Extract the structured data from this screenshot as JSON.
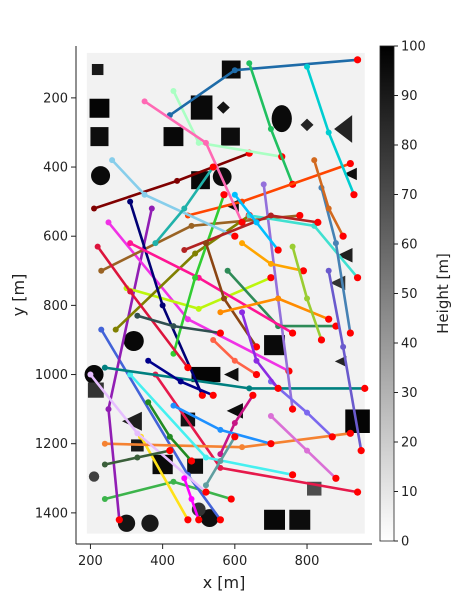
{
  "chart_data": {
    "type": "scatter",
    "title": "",
    "xlabel": "x [m]",
    "ylabel": "y [m]",
    "xlim": [
      160,
      980
    ],
    "ylim": [
      50,
      1490
    ],
    "y_inverted": true,
    "grid": false,
    "legend": "none",
    "xticks": [
      200,
      400,
      600,
      800
    ],
    "yticks": [
      200,
      400,
      600,
      800,
      1000,
      1200,
      1400
    ],
    "colorbar": {
      "label": "Height [m]",
      "range": [
        0,
        100
      ],
      "ticks": [
        0,
        10,
        20,
        30,
        40,
        50,
        60,
        70,
        80,
        90,
        100
      ],
      "colormap": "gray_r"
    },
    "map_extent": {
      "x": [
        190,
        960
      ],
      "y": [
        70,
        1460
      ]
    },
    "buildings": [
      {
        "x": 225,
        "y": 230,
        "w": 55,
        "h": 55,
        "shape": "square",
        "height": 98
      },
      {
        "x": 225,
        "y": 312,
        "w": 50,
        "h": 55,
        "shape": "square",
        "height": 95
      },
      {
        "x": 228,
        "y": 425,
        "w": 55,
        "h": 55,
        "shape": "circle",
        "height": 96
      },
      {
        "x": 220,
        "y": 118,
        "w": 32,
        "h": 32,
        "shape": "square",
        "height": 90
      },
      {
        "x": 430,
        "y": 312,
        "w": 55,
        "h": 55,
        "shape": "square",
        "height": 97
      },
      {
        "x": 508,
        "y": 228,
        "w": 60,
        "h": 70,
        "shape": "square",
        "height": 96
      },
      {
        "x": 568,
        "y": 228,
        "w": 36,
        "h": 36,
        "shape": "diamond",
        "height": 92
      },
      {
        "x": 565,
        "y": 428,
        "w": 52,
        "h": 58,
        "shape": "circle",
        "height": 95
      },
      {
        "x": 505,
        "y": 438,
        "w": 52,
        "h": 52,
        "shape": "square",
        "height": 96
      },
      {
        "x": 588,
        "y": 312,
        "w": 52,
        "h": 52,
        "shape": "square",
        "height": 95
      },
      {
        "x": 590,
        "y": 118,
        "w": 52,
        "h": 52,
        "shape": "square",
        "height": 96
      },
      {
        "x": 593,
        "y": 512,
        "w": 36,
        "h": 36,
        "shape": "triangle",
        "height": 94
      },
      {
        "x": 730,
        "y": 260,
        "w": 56,
        "h": 78,
        "shape": "ellipse",
        "height": 96
      },
      {
        "x": 800,
        "y": 278,
        "w": 36,
        "h": 36,
        "shape": "diamond",
        "height": 86
      },
      {
        "x": 900,
        "y": 290,
        "w": 50,
        "h": 80,
        "shape": "triangle",
        "height": 86
      },
      {
        "x": 920,
        "y": 420,
        "w": 36,
        "h": 36,
        "shape": "triangle",
        "height": 94
      },
      {
        "x": 905,
        "y": 655,
        "w": 42,
        "h": 42,
        "shape": "triangle",
        "height": 88
      },
      {
        "x": 885,
        "y": 735,
        "w": 42,
        "h": 42,
        "shape": "triangle",
        "height": 80
      },
      {
        "x": 893,
        "y": 962,
        "w": 32,
        "h": 32,
        "shape": "triangle",
        "height": 85
      },
      {
        "x": 320,
        "y": 903,
        "w": 58,
        "h": 58,
        "shape": "circle",
        "height": 97
      },
      {
        "x": 210,
        "y": 1000,
        "w": 55,
        "h": 55,
        "shape": "circle",
        "height": 97
      },
      {
        "x": 710,
        "y": 915,
        "w": 58,
        "h": 58,
        "shape": "square",
        "height": 96
      },
      {
        "x": 520,
        "y": 1000,
        "w": 80,
        "h": 44,
        "shape": "square",
        "height": 98
      },
      {
        "x": 590,
        "y": 1000,
        "w": 40,
        "h": 40,
        "shape": "triangle",
        "height": 94
      },
      {
        "x": 600,
        "y": 1105,
        "w": 45,
        "h": 45,
        "shape": "triangle",
        "height": 95
      },
      {
        "x": 315,
        "y": 1135,
        "w": 55,
        "h": 55,
        "shape": "triangle",
        "height": 88
      },
      {
        "x": 470,
        "y": 1130,
        "w": 40,
        "h": 40,
        "shape": "square",
        "height": 92
      },
      {
        "x": 940,
        "y": 1135,
        "w": 68,
        "h": 68,
        "shape": "square",
        "height": 98
      },
      {
        "x": 400,
        "y": 1260,
        "w": 56,
        "h": 56,
        "shape": "square",
        "height": 96
      },
      {
        "x": 490,
        "y": 1265,
        "w": 44,
        "h": 44,
        "shape": "square",
        "height": 95
      },
      {
        "x": 210,
        "y": 1295,
        "w": 30,
        "h": 30,
        "shape": "circle",
        "height": 75
      },
      {
        "x": 300,
        "y": 1430,
        "w": 50,
        "h": 50,
        "shape": "circle",
        "height": 92
      },
      {
        "x": 365,
        "y": 1430,
        "w": 50,
        "h": 50,
        "shape": "circle",
        "height": 90
      },
      {
        "x": 530,
        "y": 1415,
        "w": 52,
        "h": 52,
        "shape": "circle",
        "height": 94
      },
      {
        "x": 710,
        "y": 1420,
        "w": 58,
        "h": 58,
        "shape": "square",
        "height": 97
      },
      {
        "x": 780,
        "y": 1420,
        "w": 58,
        "h": 58,
        "shape": "square",
        "height": 95
      },
      {
        "x": 500,
        "y": 1390,
        "w": 40,
        "h": 40,
        "shape": "circle",
        "height": 80
      },
      {
        "x": 330,
        "y": 1205,
        "w": 35,
        "h": 35,
        "shape": "square",
        "height": 90
      },
      {
        "x": 215,
        "y": 1045,
        "w": 44,
        "h": 44,
        "shape": "square",
        "height": 80
      },
      {
        "x": 820,
        "y": 1330,
        "w": 40,
        "h": 40,
        "shape": "square",
        "height": 70
      }
    ],
    "trajectories": [
      {
        "color": "#e6194b",
        "points": [
          [
            380,
            1000
          ],
          [
            560,
            1270
          ],
          [
            940,
            1340
          ]
        ]
      },
      {
        "color": "#3cb44b",
        "points": [
          [
            240,
            1360
          ],
          [
            430,
            1310
          ],
          [
            590,
            1360
          ]
        ]
      },
      {
        "color": "#ffe119",
        "points": [
          [
            340,
            1180
          ],
          [
            470,
            1420
          ]
        ]
      },
      {
        "color": "#4363d8",
        "points": [
          [
            230,
            870
          ],
          [
            470,
            1290
          ],
          [
            560,
            1420
          ]
        ]
      },
      {
        "color": "#f58231",
        "points": [
          [
            240,
            1200
          ],
          [
            620,
            1210
          ],
          [
            920,
            1170
          ]
        ]
      },
      {
        "color": "#911eb4",
        "points": [
          [
            370,
            520
          ],
          [
            250,
            1100
          ],
          [
            280,
            1420
          ]
        ]
      },
      {
        "color": "#46f0f0",
        "points": [
          [
            310,
            1000
          ],
          [
            520,
            1240
          ],
          [
            760,
            1290
          ]
        ]
      },
      {
        "color": "#f032e6",
        "points": [
          [
            250,
            560
          ],
          [
            470,
            840
          ],
          [
            750,
            990
          ]
        ]
      },
      {
        "color": "#bcf60c",
        "points": [
          [
            300,
            750
          ],
          [
            500,
            810
          ],
          [
            700,
            720
          ]
        ]
      },
      {
        "color": "#008080",
        "points": [
          [
            240,
            980
          ],
          [
            640,
            1040
          ],
          [
            960,
            1040
          ]
        ]
      },
      {
        "color": "#e6beff",
        "points": [
          [
            200,
            1000
          ],
          [
            330,
            1170
          ],
          [
            520,
            1340
          ]
        ]
      },
      {
        "color": "#9a6324",
        "points": [
          [
            230,
            700
          ],
          [
            480,
            570
          ],
          [
            780,
            540
          ]
        ]
      },
      {
        "color": "#800000",
        "points": [
          [
            210,
            520
          ],
          [
            440,
            440
          ],
          [
            640,
            360
          ]
        ]
      },
      {
        "color": "#aaffc3",
        "points": [
          [
            430,
            180
          ],
          [
            500,
            330
          ],
          [
            730,
            370
          ]
        ]
      },
      {
        "color": "#808000",
        "points": [
          [
            270,
            870
          ],
          [
            490,
            650
          ],
          [
            640,
            540
          ]
        ]
      },
      {
        "color": "#000075",
        "points": [
          [
            310,
            500
          ],
          [
            400,
            800
          ],
          [
            510,
            1060
          ]
        ]
      },
      {
        "color": "#1e6ba8",
        "points": [
          [
            420,
            250
          ],
          [
            600,
            120
          ],
          [
            940,
            90
          ]
        ]
      },
      {
        "color": "#20c060",
        "points": [
          [
            640,
            100
          ],
          [
            700,
            290
          ],
          [
            760,
            450
          ]
        ]
      },
      {
        "color": "#ff4500",
        "points": [
          [
            470,
            540
          ],
          [
            620,
            500
          ],
          [
            920,
            390
          ]
        ]
      },
      {
        "color": "#ff69b4",
        "points": [
          [
            350,
            210
          ],
          [
            520,
            330
          ],
          [
            620,
            560
          ]
        ]
      },
      {
        "color": "#9370db",
        "points": [
          [
            680,
            450
          ],
          [
            720,
            780
          ],
          [
            760,
            1100
          ]
        ]
      },
      {
        "color": "#40e0d0",
        "points": [
          [
            640,
            540
          ],
          [
            820,
            570
          ],
          [
            940,
            720
          ]
        ]
      },
      {
        "color": "#2e8b57",
        "points": [
          [
            580,
            700
          ],
          [
            720,
            860
          ],
          [
            880,
            860
          ]
        ]
      },
      {
        "color": "#ff1493",
        "points": [
          [
            310,
            620
          ],
          [
            500,
            720
          ],
          [
            760,
            880
          ]
        ]
      },
      {
        "color": "#32cd32",
        "points": [
          [
            430,
            940
          ],
          [
            490,
            720
          ],
          [
            570,
            480
          ]
        ]
      },
      {
        "color": "#87ceeb",
        "points": [
          [
            260,
            380
          ],
          [
            350,
            480
          ],
          [
            600,
            600
          ]
        ]
      },
      {
        "color": "#b22222",
        "points": [
          [
            460,
            640
          ],
          [
            700,
            540
          ],
          [
            830,
            560
          ]
        ]
      },
      {
        "color": "#6a5acd",
        "points": [
          [
            860,
            700
          ],
          [
            900,
            920
          ],
          [
            950,
            1220
          ]
        ]
      },
      {
        "color": "#ffa500",
        "points": [
          [
            620,
            620
          ],
          [
            700,
            680
          ],
          [
            790,
            700
          ]
        ]
      },
      {
        "color": "#00ced1",
        "points": [
          [
            800,
            110
          ],
          [
            860,
            300
          ],
          [
            930,
            480
          ]
        ]
      },
      {
        "color": "#8b4513",
        "points": [
          [
            520,
            620
          ],
          [
            570,
            780
          ],
          [
            660,
            920
          ]
        ]
      },
      {
        "color": "#7b68ee",
        "points": [
          [
            700,
            1020
          ],
          [
            800,
            1110
          ],
          [
            870,
            1180
          ]
        ]
      },
      {
        "color": "#dc143c",
        "points": [
          [
            220,
            630
          ],
          [
            310,
            760
          ],
          [
            470,
            980
          ]
        ]
      },
      {
        "color": "#228b22",
        "points": [
          [
            360,
            1080
          ],
          [
            420,
            1180
          ],
          [
            480,
            1250
          ]
        ]
      },
      {
        "color": "#ff8c00",
        "points": [
          [
            560,
            820
          ],
          [
            720,
            780
          ],
          [
            860,
            840
          ]
        ]
      },
      {
        "color": "#4682b4",
        "points": [
          [
            840,
            460
          ],
          [
            880,
            620
          ],
          [
            920,
            880
          ]
        ]
      },
      {
        "color": "#da70d6",
        "points": [
          [
            700,
            1120
          ],
          [
            800,
            1220
          ],
          [
            880,
            1300
          ]
        ]
      },
      {
        "color": "#20b2aa",
        "points": [
          [
            380,
            620
          ],
          [
            460,
            520
          ],
          [
            540,
            400
          ]
        ]
      },
      {
        "color": "#c71585",
        "points": [
          [
            560,
            1230
          ],
          [
            600,
            1140
          ],
          [
            650,
            1060
          ]
        ]
      },
      {
        "color": "#1e90ff",
        "points": [
          [
            430,
            1090
          ],
          [
            560,
            1160
          ],
          [
            700,
            1200
          ]
        ]
      },
      {
        "color": "#9acd32",
        "points": [
          [
            760,
            630
          ],
          [
            800,
            780
          ],
          [
            840,
            900
          ]
        ]
      },
      {
        "color": "#8a2be2",
        "points": [
          [
            620,
            820
          ],
          [
            660,
            960
          ],
          [
            720,
            1040
          ]
        ]
      },
      {
        "color": "#ff6347",
        "points": [
          [
            540,
            900
          ],
          [
            600,
            960
          ],
          [
            660,
            1000
          ]
        ]
      },
      {
        "color": "#3a5f3a",
        "points": [
          [
            240,
            1260
          ],
          [
            330,
            1240
          ],
          [
            420,
            1220
          ]
        ]
      },
      {
        "color": "#5f9ea0",
        "points": [
          [
            520,
            1320
          ],
          [
            560,
            1250
          ],
          [
            600,
            1180
          ]
        ]
      },
      {
        "color": "#d2691e",
        "points": [
          [
            820,
            380
          ],
          [
            860,
            520
          ],
          [
            900,
            600
          ]
        ]
      },
      {
        "color": "#00008b",
        "points": [
          [
            360,
            960
          ],
          [
            450,
            1020
          ],
          [
            540,
            1060
          ]
        ]
      },
      {
        "color": "#ff00ff",
        "points": [
          [
            460,
            1300
          ],
          [
            480,
            1360
          ],
          [
            500,
            1420
          ]
        ]
      },
      {
        "color": "#2f4f4f",
        "points": [
          [
            330,
            830
          ],
          [
            430,
            860
          ],
          [
            560,
            880
          ]
        ]
      },
      {
        "color": "#00bfff",
        "points": [
          [
            600,
            480
          ],
          [
            660,
            560
          ],
          [
            720,
            640
          ]
        ]
      }
    ]
  }
}
